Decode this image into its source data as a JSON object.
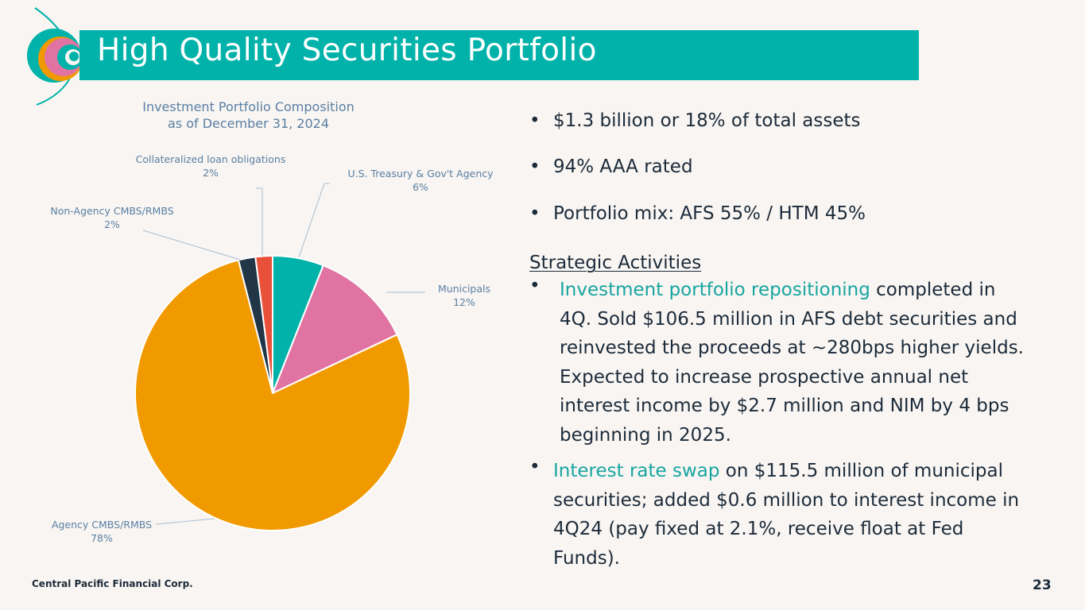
{
  "header": {
    "title": "High Quality Securities Portfolio"
  },
  "colors": {
    "accent": "#00b2a9",
    "highlight": "#17a5a0",
    "label": "#5a7fa3"
  },
  "chart_data": {
    "type": "pie",
    "title": "Investment Portfolio Composition",
    "subtitle": "as of December 31, 2024",
    "slices": [
      {
        "label": "U.S. Treasury & Gov't Agency",
        "value": 6,
        "display": "6%",
        "color": "#00b2a9"
      },
      {
        "label": "Municipals",
        "value": 12,
        "display": "12%",
        "color": "#e173a2"
      },
      {
        "label": "Agency CMBS/RMBS",
        "value": 78,
        "display": "78%",
        "color": "#f19a00"
      },
      {
        "label": "Non-Agency CMBS/RMBS",
        "value": 2,
        "display": "2%",
        "color": "#213646"
      },
      {
        "label": "Collateralized loan obligations",
        "value": 2,
        "display": "2%",
        "color": "#e8503a"
      }
    ]
  },
  "bullets": {
    "items": [
      "$1.3 billion or 18% of total assets",
      "94% AAA rated",
      "Portfolio mix: AFS 55% / HTM 45%"
    ],
    "strategic_heading": "Strategic Activities",
    "activity1": {
      "highlight": "Investment portfolio repositioning",
      "text": " completed in 4Q. Sold $106.5 million in AFS debt securities and reinvested the proceeds at ~280bps higher yields. Expected to increase prospective annual net interest income by $2.7 million and NIM by 4 bps beginning in 2025."
    },
    "activity2": {
      "highlight": "Interest rate swap",
      "text": " on $115.5 million of municipal securities; added $0.6 million to interest income in 4Q24 (pay fixed at 2.1%, receive float at Fed Funds)."
    }
  },
  "footer": {
    "company": "Central Pacific Financial Corp.",
    "page": "23"
  }
}
